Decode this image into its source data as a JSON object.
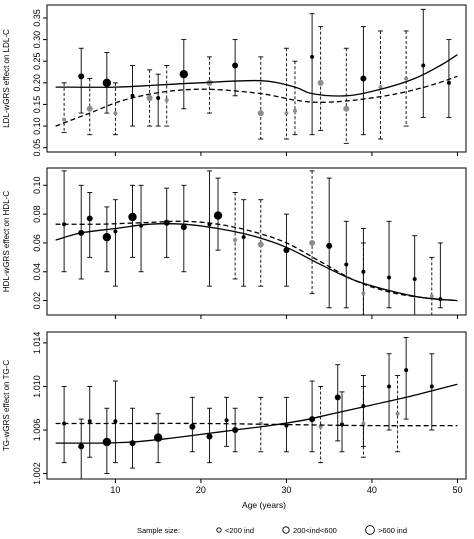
{
  "figure": {
    "xlabel": "Age (years)",
    "legend": {
      "title": "Sample size:",
      "items": [
        "<200 ind",
        "200<ind<600",
        ">600 ind"
      ]
    }
  },
  "chart_data": [
    {
      "type": "scatter",
      "ylabel": "LDL-wGRS effect on LDL-C",
      "xlim": [
        2,
        51
      ],
      "ylim": [
        0.04,
        0.38
      ],
      "y_ticks": [
        0.05,
        0.1,
        0.15,
        0.2,
        0.25,
        0.3,
        0.35
      ],
      "y_tick_labels": [
        "0.05",
        "0.10",
        "0.15",
        "0.20",
        "0.25",
        "0.30",
        "0.35"
      ],
      "series": [
        {
          "group": "black",
          "points": [
            {
              "x": 6,
              "y": 0.215,
              "lo": 0.13,
              "hi": 0.28,
              "size": "mid"
            },
            {
              "x": 9,
              "y": 0.2,
              "lo": 0.13,
              "hi": 0.27,
              "size": "large"
            },
            {
              "x": 12,
              "y": 0.17,
              "lo": 0.1,
              "hi": 0.24,
              "size": "small"
            },
            {
              "x": 15,
              "y": 0.165,
              "lo": 0.1,
              "hi": 0.22,
              "size": "small"
            },
            {
              "x": 18,
              "y": 0.22,
              "lo": 0.14,
              "hi": 0.3,
              "size": "large"
            },
            {
              "x": 24,
              "y": 0.24,
              "lo": 0.17,
              "hi": 0.3,
              "size": "mid"
            },
            {
              "x": 33,
              "y": 0.26,
              "lo": 0.08,
              "hi": 0.36,
              "size": "small"
            },
            {
              "x": 39,
              "y": 0.21,
              "lo": 0.08,
              "hi": 0.33,
              "size": "mid"
            },
            {
              "x": 46,
              "y": 0.24,
              "lo": 0.12,
              "hi": 0.37,
              "size": "small"
            },
            {
              "x": 49,
              "y": 0.2,
              "lo": 0.12,
              "hi": 0.3,
              "size": "small"
            }
          ]
        },
        {
          "group": "grey",
          "points": [
            {
              "x": 4,
              "y": 0.115,
              "lo": 0.085,
              "hi": 0.2,
              "size": "small"
            },
            {
              "x": 7,
              "y": 0.14,
              "lo": 0.08,
              "hi": 0.21,
              "size": "mid"
            },
            {
              "x": 10,
              "y": 0.13,
              "lo": 0.08,
              "hi": 0.2,
              "size": "small"
            },
            {
              "x": 14,
              "y": 0.165,
              "lo": 0.1,
              "hi": 0.23,
              "size": "mid"
            },
            {
              "x": 16,
              "y": 0.16,
              "lo": 0.1,
              "hi": 0.24,
              "size": "small"
            },
            {
              "x": 21,
              "y": 0.2,
              "lo": 0.13,
              "hi": 0.26,
              "size": "mid"
            },
            {
              "x": 27,
              "y": 0.13,
              "lo": 0.07,
              "hi": 0.26,
              "size": "mid"
            },
            {
              "x": 30,
              "y": 0.13,
              "lo": 0.07,
              "hi": 0.28,
              "size": "small"
            },
            {
              "x": 31,
              "y": 0.135,
              "lo": 0.08,
              "hi": 0.25,
              "size": "small"
            },
            {
              "x": 34,
              "y": 0.2,
              "lo": 0.09,
              "hi": 0.33,
              "size": "mid"
            },
            {
              "x": 37,
              "y": 0.14,
              "lo": 0.06,
              "hi": 0.28,
              "size": "mid"
            },
            {
              "x": 41,
              "y": 0.19,
              "lo": 0.07,
              "hi": 0.32,
              "size": "small"
            },
            {
              "x": 44,
              "y": 0.21,
              "lo": 0.1,
              "hi": 0.32,
              "size": "small"
            }
          ]
        }
      ],
      "fits": [
        {
          "style": "solid",
          "points": [
            [
              3,
              0.19
            ],
            [
              10,
              0.19
            ],
            [
              15,
              0.195
            ],
            [
              20,
              0.2
            ],
            [
              27,
              0.205
            ],
            [
              31,
              0.19
            ],
            [
              33,
              0.175
            ],
            [
              37,
              0.17
            ],
            [
              41,
              0.185
            ],
            [
              45,
              0.21
            ],
            [
              48,
              0.24
            ],
            [
              50,
              0.265
            ]
          ]
        },
        {
          "style": "dashed",
          "points": [
            [
              3,
              0.1
            ],
            [
              7,
              0.13
            ],
            [
              11,
              0.16
            ],
            [
              16,
              0.18
            ],
            [
              21,
              0.185
            ],
            [
              27,
              0.175
            ],
            [
              31,
              0.16
            ],
            [
              34,
              0.155
            ],
            [
              38,
              0.16
            ],
            [
              43,
              0.175
            ],
            [
              47,
              0.195
            ],
            [
              50,
              0.215
            ]
          ]
        }
      ]
    },
    {
      "type": "scatter",
      "ylabel": "HDL-wGRS effect on HDL-C",
      "xlim": [
        2,
        51
      ],
      "ylim": [
        0.01,
        0.112
      ],
      "y_ticks": [
        0.02,
        0.04,
        0.06,
        0.08,
        0.1
      ],
      "y_tick_labels": [
        "0.02",
        "0.04",
        "0.06",
        "0.08",
        "0.10"
      ],
      "series": [
        {
          "group": "black",
          "points": [
            {
              "x": 4,
              "y": 0.073,
              "lo": 0.04,
              "hi": 0.11,
              "size": "small"
            },
            {
              "x": 6,
              "y": 0.067,
              "lo": 0.035,
              "hi": 0.1,
              "size": "mid"
            },
            {
              "x": 7,
              "y": 0.077,
              "lo": 0.05,
              "hi": 0.095,
              "size": "mid"
            },
            {
              "x": 9,
              "y": 0.064,
              "lo": 0.04,
              "hi": 0.085,
              "size": "large"
            },
            {
              "x": 10,
              "y": 0.068,
              "lo": 0.03,
              "hi": 0.09,
              "size": "small"
            },
            {
              "x": 12,
              "y": 0.078,
              "lo": 0.05,
              "hi": 0.1,
              "size": "large"
            },
            {
              "x": 13,
              "y": 0.072,
              "lo": 0.04,
              "hi": 0.1,
              "size": "small"
            },
            {
              "x": 16,
              "y": 0.074,
              "lo": 0.05,
              "hi": 0.098,
              "size": "mid"
            },
            {
              "x": 18,
              "y": 0.071,
              "lo": 0.04,
              "hi": 0.1,
              "size": "mid"
            },
            {
              "x": 21,
              "y": 0.073,
              "lo": 0.03,
              "hi": 0.11,
              "size": "small"
            },
            {
              "x": 22,
              "y": 0.079,
              "lo": 0.055,
              "hi": 0.105,
              "size": "large"
            },
            {
              "x": 25,
              "y": 0.064,
              "lo": 0.03,
              "hi": 0.09,
              "size": "small"
            },
            {
              "x": 30,
              "y": 0.055,
              "lo": 0.03,
              "hi": 0.08,
              "size": "mid"
            },
            {
              "x": 35,
              "y": 0.058,
              "lo": 0.015,
              "hi": 0.105,
              "size": "mid"
            },
            {
              "x": 37,
              "y": 0.045,
              "lo": 0.015,
              "hi": 0.075,
              "size": "small"
            },
            {
              "x": 39,
              "y": 0.04,
              "lo": 0.01,
              "hi": 0.07,
              "size": "small"
            },
            {
              "x": 42,
              "y": 0.036,
              "lo": 0.015,
              "hi": 0.075,
              "size": "small"
            },
            {
              "x": 45,
              "y": 0.035,
              "lo": 0.01,
              "hi": 0.065,
              "size": "small"
            },
            {
              "x": 48,
              "y": 0.021,
              "lo": 0.015,
              "hi": 0.06,
              "size": "small"
            }
          ]
        },
        {
          "group": "grey",
          "points": [
            {
              "x": 24,
              "y": 0.062,
              "lo": 0.035,
              "hi": 0.095,
              "size": "small"
            },
            {
              "x": 27,
              "y": 0.059,
              "lo": 0.03,
              "hi": 0.09,
              "size": "mid"
            },
            {
              "x": 33,
              "y": 0.06,
              "lo": 0.025,
              "hi": 0.11,
              "size": "mid"
            },
            {
              "x": 39,
              "y": 0.025,
              "lo": 0.01,
              "hi": 0.06,
              "size": "small"
            },
            {
              "x": 47,
              "y": 0.023,
              "lo": 0.01,
              "hi": 0.05,
              "size": "small"
            }
          ]
        }
      ],
      "fits": [
        {
          "style": "solid",
          "points": [
            [
              3,
              0.062
            ],
            [
              6,
              0.067
            ],
            [
              10,
              0.07
            ],
            [
              14,
              0.073
            ],
            [
              18,
              0.073
            ],
            [
              22,
              0.07
            ],
            [
              26,
              0.065
            ],
            [
              30,
              0.057
            ],
            [
              34,
              0.045
            ],
            [
              38,
              0.034
            ],
            [
              42,
              0.027
            ],
            [
              46,
              0.022
            ],
            [
              50,
              0.02
            ]
          ]
        },
        {
          "style": "dashed",
          "points": [
            [
              3,
              0.073
            ],
            [
              8,
              0.073
            ],
            [
              13,
              0.074
            ],
            [
              18,
              0.075
            ],
            [
              22,
              0.073
            ],
            [
              26,
              0.068
            ],
            [
              30,
              0.06
            ],
            [
              34,
              0.047
            ],
            [
              38,
              0.034
            ],
            [
              42,
              0.026
            ],
            [
              46,
              0.022
            ],
            [
              50,
              0.02
            ]
          ]
        }
      ]
    },
    {
      "type": "scatter",
      "ylabel": "TG-wGRS effect on TG-C",
      "xlim": [
        2,
        51
      ],
      "ylim": [
        1.0015,
        1.015
      ],
      "y_ticks": [
        1.002,
        1.006,
        1.01,
        1.014
      ],
      "y_tick_labels": [
        "1.002",
        "1.006",
        "1.010",
        "1.014"
      ],
      "series": [
        {
          "group": "black",
          "points": [
            {
              "x": 4,
              "y": 1.0066,
              "lo": 1.003,
              "hi": 1.01,
              "size": "small"
            },
            {
              "x": 6,
              "y": 1.0045,
              "lo": 1.0015,
              "hi": 1.007,
              "size": "mid"
            },
            {
              "x": 7,
              "y": 1.0068,
              "lo": 1.0035,
              "hi": 1.01,
              "size": "small"
            },
            {
              "x": 9,
              "y": 1.0049,
              "lo": 1.002,
              "hi": 1.008,
              "size": "large"
            },
            {
              "x": 10,
              "y": 1.0068,
              "lo": 1.003,
              "hi": 1.0105,
              "size": "small"
            },
            {
              "x": 12,
              "y": 1.0048,
              "lo": 1.0025,
              "hi": 1.008,
              "size": "mid"
            },
            {
              "x": 15,
              "y": 1.0053,
              "lo": 1.003,
              "hi": 1.0075,
              "size": "large"
            },
            {
              "x": 19,
              "y": 1.0063,
              "lo": 1.004,
              "hi": 1.009,
              "size": "mid"
            },
            {
              "x": 21,
              "y": 1.0054,
              "lo": 1.003,
              "hi": 1.008,
              "size": "mid"
            },
            {
              "x": 23,
              "y": 1.0069,
              "lo": 1.0045,
              "hi": 1.009,
              "size": "small"
            },
            {
              "x": 24,
              "y": 1.006,
              "lo": 1.004,
              "hi": 1.008,
              "size": "mid"
            },
            {
              "x": 30,
              "y": 1.0064,
              "lo": 1.004,
              "hi": 1.009,
              "size": "small"
            },
            {
              "x": 33,
              "y": 1.007,
              "lo": 1.004,
              "hi": 1.0105,
              "size": "mid"
            },
            {
              "x": 36,
              "y": 1.009,
              "lo": 1.005,
              "hi": 1.012,
              "size": "mid"
            },
            {
              "x": 36.5,
              "y": 1.0065,
              "lo": 1.004,
              "hi": 1.0095,
              "size": "small"
            },
            {
              "x": 39,
              "y": 1.0082,
              "lo": 1.0045,
              "hi": 1.011,
              "size": "small"
            },
            {
              "x": 42,
              "y": 1.01,
              "lo": 1.006,
              "hi": 1.013,
              "size": "small"
            },
            {
              "x": 44,
              "y": 1.0115,
              "lo": 1.007,
              "hi": 1.0145,
              "size": "small"
            },
            {
              "x": 47,
              "y": 1.01,
              "lo": 1.006,
              "hi": 1.013,
              "size": "small"
            }
          ]
        },
        {
          "group": "grey",
          "points": [
            {
              "x": 27,
              "y": 1.0066,
              "lo": 1.004,
              "hi": 1.009,
              "size": "small"
            },
            {
              "x": 34,
              "y": 1.0063,
              "lo": 1.003,
              "hi": 1.01,
              "size": "small"
            },
            {
              "x": 39,
              "y": 1.0066,
              "lo": 1.0035,
              "hi": 1.01,
              "size": "small"
            },
            {
              "x": 43,
              "y": 1.0075,
              "lo": 1.004,
              "hi": 1.011,
              "size": "small"
            }
          ]
        }
      ],
      "fits": [
        {
          "style": "solid",
          "points": [
            [
              3,
              1.0048
            ],
            [
              8,
              1.0048
            ],
            [
              12,
              1.0049
            ],
            [
              16,
              1.0052
            ],
            [
              20,
              1.0056
            ],
            [
              24,
              1.006
            ],
            [
              28,
              1.0064
            ],
            [
              32,
              1.0069
            ],
            [
              36,
              1.0076
            ],
            [
              40,
              1.0083
            ],
            [
              44,
              1.009
            ],
            [
              48,
              1.0098
            ],
            [
              50,
              1.0102
            ]
          ]
        },
        {
          "style": "dashed",
          "points": [
            [
              3,
              1.0066
            ],
            [
              10,
              1.0066
            ],
            [
              20,
              1.0066
            ],
            [
              30,
              1.0065
            ],
            [
              40,
              1.0064
            ],
            [
              50,
              1.0064
            ]
          ]
        }
      ]
    }
  ],
  "x_ticks": [
    10,
    20,
    30,
    40,
    50
  ],
  "x_tick_labels": [
    "10",
    "20",
    "30",
    "40",
    "50"
  ]
}
